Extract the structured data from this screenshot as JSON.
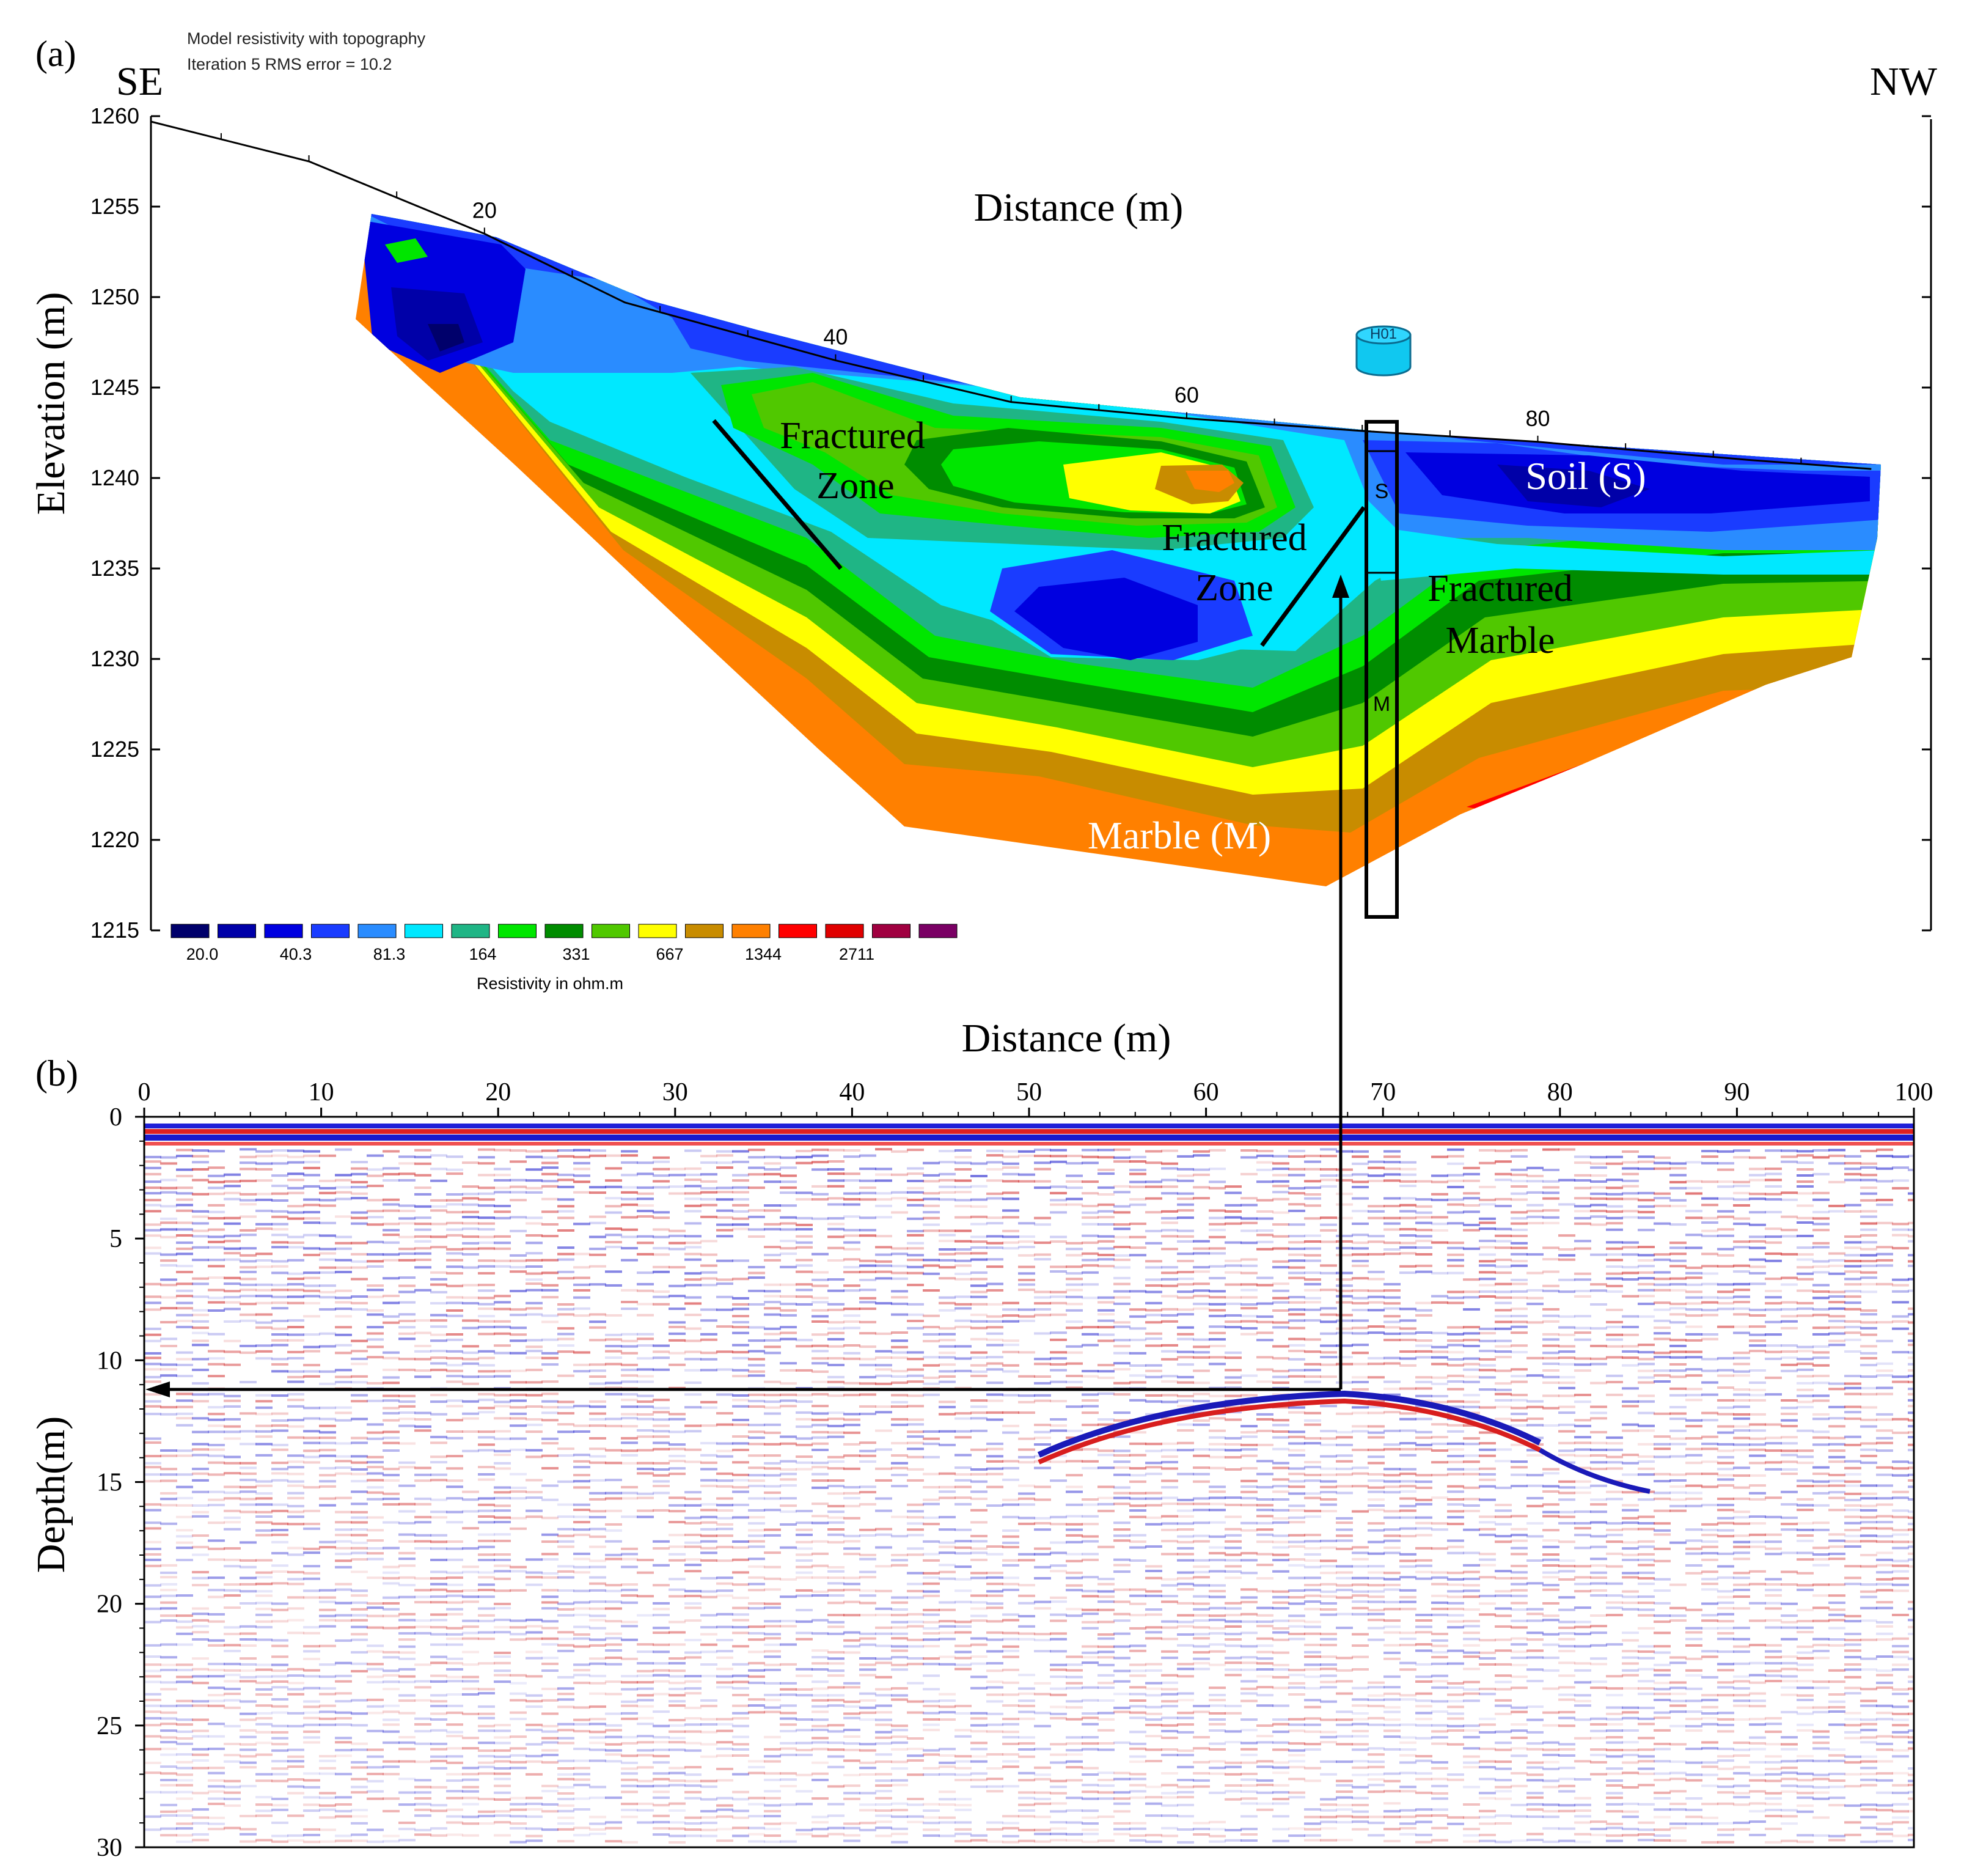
{
  "panel_a": {
    "label": "(a)",
    "header_line1": "Model resistivity with topography",
    "header_line2": "Iteration 5 RMS error = 10.2",
    "direction_left": "SE",
    "direction_right": "NW",
    "xlabel": "Distance (m)",
    "ylabel": "Elevation (m)",
    "borehole_label": "H01",
    "borehole_soil_mark": "S",
    "borehole_marble_mark": "M",
    "annotations": {
      "fractured_zone_1": [
        "Fractured",
        "Zone"
      ],
      "fractured_zone_2": [
        "Fractured",
        "Zone"
      ],
      "soil": "Soil (S)",
      "fractured_marble": [
        "Fractured",
        "Marble"
      ],
      "marble": "Marble (M)"
    },
    "legend_title": "Resistivity in ohm.m",
    "legend_tick_labels": [
      "20.0",
      "40.3",
      "81.3",
      "164",
      "331",
      "667",
      "1344",
      "2711"
    ],
    "legend_colors": [
      "#00006b",
      "#0000a8",
      "#0000e0",
      "#1a3cff",
      "#2a8cff",
      "#00e8ff",
      "#1fb585",
      "#00e600",
      "#008c00",
      "#50c800",
      "#ffff00",
      "#c88c00",
      "#ff8000",
      "#ff0000",
      "#e00000",
      "#a00040",
      "#7a0064"
    ]
  },
  "panel_b": {
    "label": "(b)",
    "xlabel": "Distance (m)",
    "ylabel": "Depth(m)"
  },
  "chart_data": [
    {
      "type": "heatmap",
      "title": "Model resistivity with topography",
      "subtitle": "Iteration 5 RMS error = 10.2",
      "xlabel": "Distance (m)",
      "ylabel": "Elevation (m)",
      "xticks": [
        20,
        40,
        60,
        80
      ],
      "yticks": [
        1260,
        1255,
        1250,
        1245,
        1240,
        1235,
        1230,
        1225,
        1220,
        1215
      ],
      "ylim": [
        1215,
        1260
      ],
      "colorbar_label": "Resistivity in ohm.m",
      "colorbar_ticks": [
        20.0,
        40.3,
        81.3,
        164,
        331,
        667,
        1344,
        2711
      ],
      "topography": [
        [
          1,
          1259.7
        ],
        [
          10,
          1257.5
        ],
        [
          20,
          1253.5
        ],
        [
          28,
          1249.7
        ],
        [
          40,
          1246.5
        ],
        [
          50,
          1244.2
        ],
        [
          60,
          1243.3
        ],
        [
          70,
          1242.6
        ],
        [
          80,
          1242.0
        ],
        [
          92,
          1241.0
        ],
        [
          99,
          1240.5
        ]
      ],
      "borehole": {
        "name": "H01",
        "x": 69.5,
        "soil_bottom_elevation": 1235
      },
      "annotations": [
        "Fractured Zone",
        "Fractured Zone",
        "Soil (S)",
        "Fractured Marble",
        "Marble (M)"
      ]
    },
    {
      "type": "heatmap",
      "xlabel": "Distance (m)",
      "ylabel": "Depth(m)",
      "xticks": [
        0,
        10,
        20,
        30,
        40,
        50,
        60,
        70,
        80,
        90,
        100
      ],
      "yticks": [
        0,
        5,
        10,
        15,
        20,
        25,
        30
      ],
      "xlim": [
        0,
        100
      ],
      "ylim": [
        30,
        0
      ],
      "marked_reflector": {
        "x": 67.5,
        "depth": 11.1
      }
    }
  ]
}
